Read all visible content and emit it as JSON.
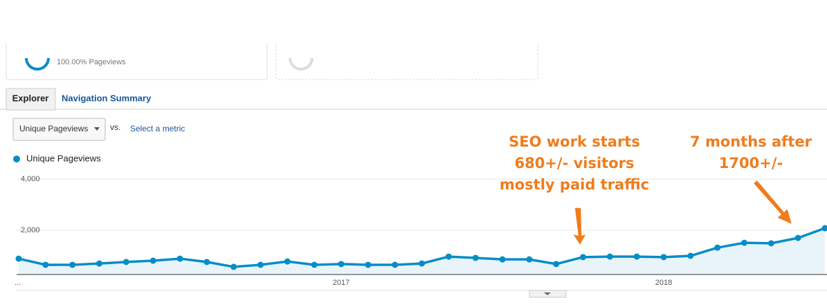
{
  "summary": {
    "card_text": "100.00% Pageviews"
  },
  "tabs": [
    "Explorer",
    "Navigation Summary"
  ],
  "controls": {
    "metric": "Unique Pageviews",
    "vs": "vs.",
    "select": "Select a metric"
  },
  "chart_data": {
    "type": "line",
    "categories": [
      "...",
      null,
      null,
      null,
      null,
      null,
      null,
      null,
      null,
      null,
      null,
      null,
      "2017",
      null,
      null,
      null,
      null,
      null,
      null,
      null,
      null,
      null,
      null,
      null,
      "2018",
      null,
      null,
      null,
      null,
      null,
      null
    ],
    "series": [
      {
        "name": "Unique Pageviews",
        "color": "#058dc7",
        "values": [
          890,
          650,
          650,
          700,
          760,
          810,
          890,
          760,
          570,
          650,
          780,
          650,
          680,
          650,
          650,
          700,
          970,
          920,
          860,
          860,
          680,
          950,
          970,
          970,
          950,
          1000,
          1320,
          1510,
          1490,
          1700,
          2080
        ]
      }
    ],
    "ylim": [
      0,
      4000
    ],
    "yticks": [
      {
        "value": 2000,
        "label": "2,000"
      },
      {
        "value": 4000,
        "label": "4,000"
      }
    ],
    "grid": true,
    "annotations": [
      {
        "lines": [
          "SEO work starts",
          "680+/- visitors",
          "mostly paid traffic"
        ]
      },
      {
        "lines": [
          "7 months after",
          "1700+/-"
        ]
      }
    ]
  }
}
